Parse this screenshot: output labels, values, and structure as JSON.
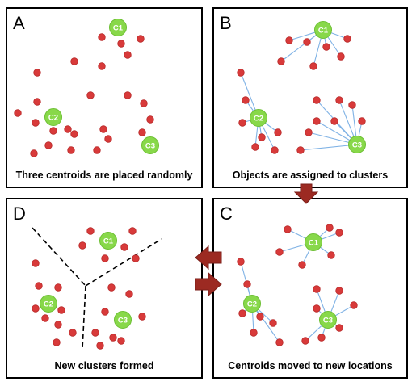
{
  "colors": {
    "border": "#000000",
    "point": "#d83a3a",
    "point_edge": "#b82828",
    "centroid": "#88d84a",
    "centroid_edge": "#6cbf32",
    "link": "#7fb2e5",
    "arrow": "#9c2a22"
  },
  "panels": [
    {
      "letter": "A",
      "caption": "Three centroids are placed randomly"
    },
    {
      "letter": "B",
      "caption": "Objects are assigned to clusters"
    },
    {
      "letter": "C",
      "caption": "Centroids moved to new locations"
    },
    {
      "letter": "D",
      "caption": "New clusters formed"
    }
  ],
  "centroids": [
    "C1",
    "C2",
    "C3"
  ],
  "icons": {
    "flow_arrows": [
      "arrow-down-icon",
      "arrow-left-icon",
      "arrow-right-icon"
    ],
    "points": "data-point-icon",
    "centroids": "centroid-icon"
  }
}
